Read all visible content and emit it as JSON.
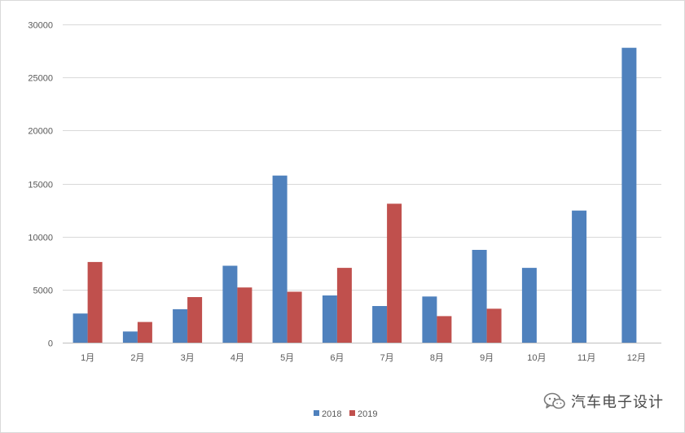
{
  "chart_data": {
    "type": "bar",
    "categories": [
      "1月",
      "2月",
      "3月",
      "4月",
      "5月",
      "6月",
      "7月",
      "8月",
      "9月",
      "10月",
      "11月",
      "12月"
    ],
    "series": [
      {
        "name": "2018",
        "values": [
          2750,
          1050,
          3150,
          7250,
          15750,
          4450,
          3450,
          4350,
          8750,
          7050,
          12450,
          27800
        ],
        "color": "#4f81bd"
      },
      {
        "name": "2019",
        "values": [
          7600,
          1950,
          4300,
          5200,
          4800,
          7050,
          13100,
          2500,
          3200,
          null,
          null,
          null
        ],
        "color": "#c0504d"
      }
    ],
    "ylim": [
      0,
      30000
    ],
    "yticks": [
      0,
      5000,
      10000,
      15000,
      20000,
      25000,
      30000
    ],
    "grid": true,
    "legend_position": "bottom",
    "xlabel": "",
    "ylabel": "",
    "title": ""
  },
  "watermark": {
    "text": "汽车电子设计",
    "icon": "wechat-icon"
  }
}
